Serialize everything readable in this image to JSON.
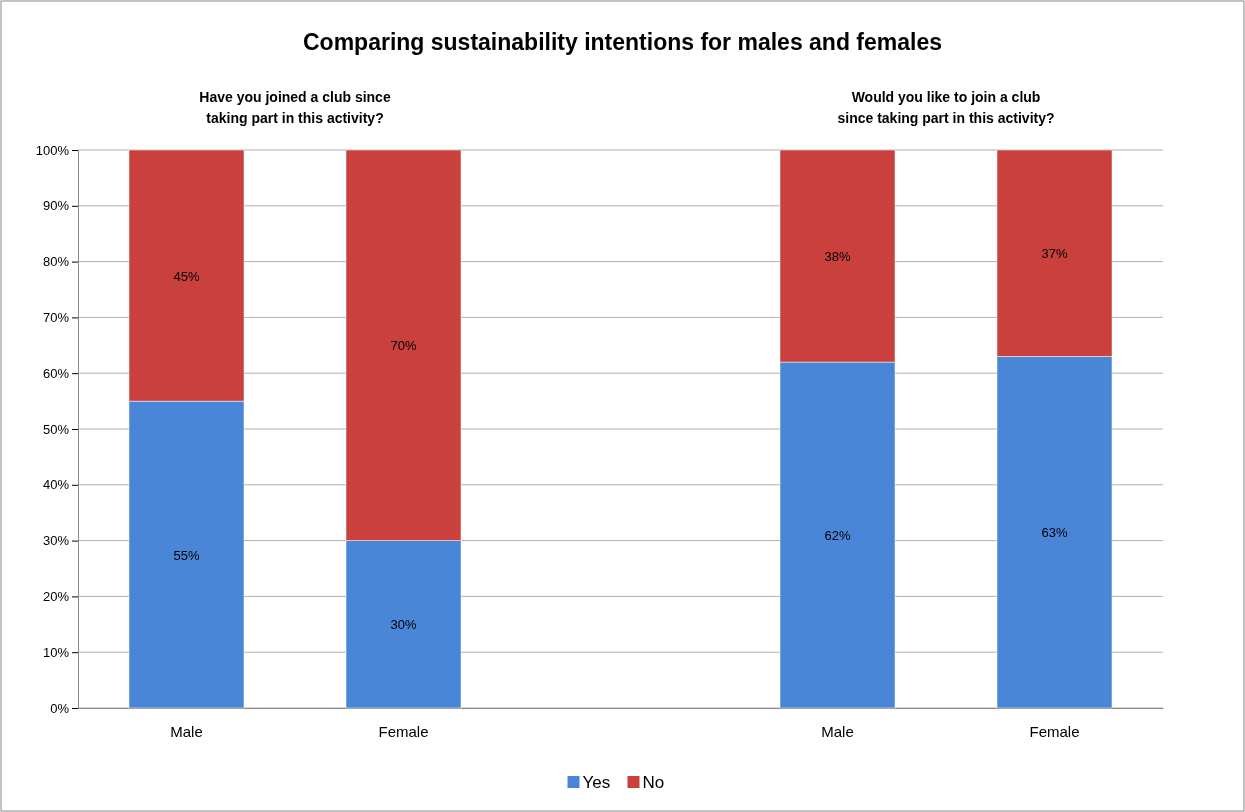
{
  "chart_data": {
    "type": "bar",
    "title": "Comparing sustainability intentions for males and females",
    "annotations": [
      "Have you joined a club since\ntaking part in this activity?",
      "Would you like to join a club\nsince taking part in this activity?"
    ],
    "categories": [
      "Male",
      "Female",
      null,
      "Male",
      "Female"
    ],
    "series": [
      {
        "name": "Yes",
        "color": "#4a86d8",
        "values": [
          55,
          30,
          null,
          62,
          63
        ],
        "value_labels": [
          "55%",
          "30%",
          null,
          "62%",
          "63%"
        ]
      },
      {
        "name": "No",
        "color": "#c9403c",
        "values": [
          45,
          70,
          null,
          38,
          37
        ],
        "value_labels": [
          "45%",
          "70%",
          null,
          "38%",
          "37%"
        ]
      }
    ],
    "stacked": true,
    "ylim": [
      0,
      100
    ],
    "yticks": [
      {
        "value": 0,
        "label": "0%"
      },
      {
        "value": 10,
        "label": "10%"
      },
      {
        "value": 20,
        "label": "20%"
      },
      {
        "value": 30,
        "label": "30%"
      },
      {
        "value": 40,
        "label": "40%"
      },
      {
        "value": 50,
        "label": "50%"
      },
      {
        "value": 60,
        "label": "60%"
      },
      {
        "value": 70,
        "label": "70%"
      },
      {
        "value": 80,
        "label": "80%"
      },
      {
        "value": 90,
        "label": "90%"
      },
      {
        "value": 100,
        "label": "100%"
      }
    ],
    "grid": "y",
    "legend": "bottom"
  }
}
